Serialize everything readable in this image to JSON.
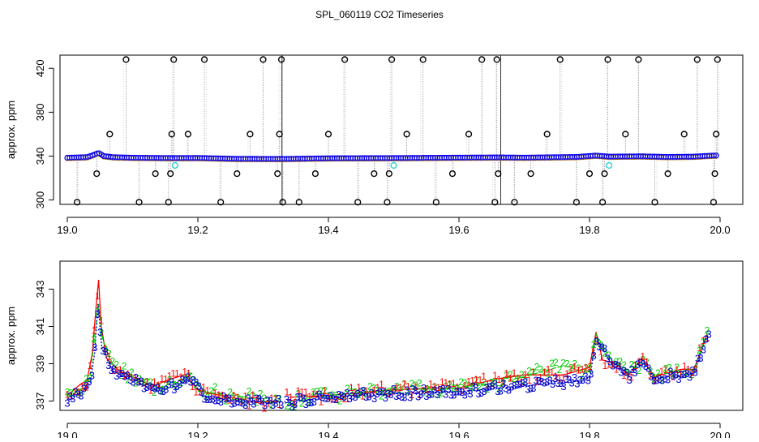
{
  "chart_data": [
    {
      "type": "scatter",
      "title": "SPL_060119  CO2 Timeseries",
      "xlabel": "",
      "ylabel": "approx. ppm",
      "xlim": [
        19.0,
        20.0
      ],
      "ylim": [
        296,
        432
      ],
      "xticks": [
        19.0,
        19.2,
        19.4,
        19.6,
        19.8,
        20.0
      ],
      "xtick_labels": [
        "19.0",
        "19.2",
        "19.4",
        "19.6",
        "19.8",
        "20.0"
      ],
      "yticks": [
        300,
        340,
        380,
        420
      ],
      "ytick_labels": [
        "300",
        "340",
        "380",
        "420"
      ],
      "vertical_breaks_x": [
        19.329,
        19.664
      ],
      "baseline": [
        [
          19.0,
          338.5
        ],
        [
          19.03,
          339.0
        ],
        [
          19.04,
          341.0
        ],
        [
          19.048,
          343.0
        ],
        [
          19.056,
          340.0
        ],
        [
          19.07,
          339.0
        ],
        [
          19.1,
          338.5
        ],
        [
          19.16,
          338.2
        ],
        [
          19.2,
          338.3
        ],
        [
          19.26,
          337.5
        ],
        [
          19.33,
          337.4
        ],
        [
          19.4,
          338.0
        ],
        [
          19.5,
          338.2
        ],
        [
          19.6,
          338.6
        ],
        [
          19.66,
          338.8
        ],
        [
          19.7,
          338.6
        ],
        [
          19.78,
          339.2
        ],
        [
          19.81,
          340.5
        ],
        [
          19.83,
          339.5
        ],
        [
          19.88,
          339.8
        ],
        [
          19.92,
          339.2
        ],
        [
          19.96,
          339.5
        ],
        [
          19.99,
          340.5
        ]
      ],
      "cyan_points": [
        [
          19.165,
          331.5
        ],
        [
          19.5,
          331.5
        ],
        [
          19.83,
          331.5
        ]
      ],
      "spikes": [
        [
          19.015,
          298
        ],
        [
          19.045,
          324
        ],
        [
          19.065,
          360
        ],
        [
          19.09,
          428
        ],
        [
          19.11,
          298
        ],
        [
          19.135,
          324
        ],
        [
          19.155,
          298
        ],
        [
          19.158,
          324
        ],
        [
          19.16,
          360
        ],
        [
          19.163,
          428
        ],
        [
          19.185,
          360
        ],
        [
          19.21,
          428
        ],
        [
          19.235,
          298
        ],
        [
          19.26,
          324
        ],
        [
          19.28,
          360
        ],
        [
          19.3,
          428
        ],
        [
          19.322,
          324
        ],
        [
          19.325,
          360
        ],
        [
          19.328,
          428
        ],
        [
          19.33,
          298
        ],
        [
          19.355,
          298
        ],
        [
          19.38,
          324
        ],
        [
          19.4,
          360
        ],
        [
          19.425,
          428
        ],
        [
          19.445,
          298
        ],
        [
          19.47,
          324
        ],
        [
          19.49,
          298
        ],
        [
          19.493,
          324
        ],
        [
          19.497,
          428
        ],
        [
          19.52,
          360
        ],
        [
          19.545,
          428
        ],
        [
          19.565,
          298
        ],
        [
          19.59,
          324
        ],
        [
          19.615,
          360
        ],
        [
          19.635,
          428
        ],
        [
          19.655,
          298
        ],
        [
          19.658,
          428
        ],
        [
          19.66,
          324
        ],
        [
          19.685,
          298
        ],
        [
          19.71,
          324
        ],
        [
          19.735,
          360
        ],
        [
          19.755,
          428
        ],
        [
          19.78,
          298
        ],
        [
          19.8,
          324
        ],
        [
          19.82,
          298
        ],
        [
          19.823,
          324
        ],
        [
          19.828,
          428
        ],
        [
          19.855,
          360
        ],
        [
          19.875,
          428
        ],
        [
          19.9,
          298
        ],
        [
          19.92,
          324
        ],
        [
          19.945,
          360
        ],
        [
          19.965,
          428
        ],
        [
          19.99,
          298
        ],
        [
          19.992,
          324
        ],
        [
          19.994,
          360
        ],
        [
          19.996,
          428
        ]
      ]
    },
    {
      "type": "line",
      "title": "",
      "xlabel": "",
      "ylabel": "approx. ppm",
      "xlim": [
        19.0,
        20.0
      ],
      "ylim": [
        336.5,
        344.5
      ],
      "xticks": [
        19.0,
        19.2,
        19.4,
        19.6,
        19.8,
        20.0
      ],
      "xtick_labels": [
        "19.0",
        "19.2",
        "19.4",
        "19.6",
        "19.8",
        "20.0"
      ],
      "yticks": [
        337,
        339,
        341,
        343
      ],
      "ytick_labels": [
        "337",
        "339",
        "341",
        "343"
      ],
      "series": [
        {
          "name": "1",
          "color": "#ff0000",
          "points": [
            [
              19.0,
              337.3
            ],
            [
              19.02,
              337.9
            ],
            [
              19.03,
              338.1
            ],
            [
              19.038,
              339.5
            ],
            [
              19.044,
              342.0
            ],
            [
              19.048,
              343.5
            ],
            [
              19.052,
              341.0
            ],
            [
              19.06,
              339.3
            ],
            [
              19.08,
              338.6
            ],
            [
              19.1,
              338.3
            ],
            [
              19.13,
              337.8
            ],
            [
              19.16,
              338.2
            ],
            [
              19.18,
              338.4
            ],
            [
              19.2,
              337.6
            ],
            [
              19.22,
              337.4
            ],
            [
              19.25,
              337.2
            ],
            [
              19.28,
              337.0
            ],
            [
              19.32,
              336.9
            ],
            [
              19.34,
              337.2
            ],
            [
              19.4,
              337.3
            ],
            [
              19.5,
              337.6
            ],
            [
              19.56,
              337.7
            ],
            [
              19.6,
              337.7
            ],
            [
              19.66,
              338.2
            ],
            [
              19.7,
              338.4
            ],
            [
              19.76,
              338.4
            ],
            [
              19.8,
              338.8
            ],
            [
              19.81,
              340.7
            ],
            [
              19.82,
              339.2
            ],
            [
              19.84,
              339.0
            ],
            [
              19.86,
              338.4
            ],
            [
              19.88,
              339.3
            ],
            [
              19.9,
              338.3
            ],
            [
              19.94,
              338.7
            ],
            [
              19.96,
              338.7
            ],
            [
              19.98,
              340.6
            ]
          ]
        },
        {
          "name": "2",
          "color": "#00cc00",
          "points": [
            [
              19.0,
              337.2
            ],
            [
              19.02,
              337.6
            ],
            [
              19.035,
              338.3
            ],
            [
              19.042,
              340.5
            ],
            [
              19.048,
              342.2
            ],
            [
              19.054,
              340.3
            ],
            [
              19.07,
              338.9
            ],
            [
              19.1,
              338.3
            ],
            [
              19.14,
              337.7
            ],
            [
              19.17,
              338.1
            ],
            [
              19.19,
              338.5
            ],
            [
              19.21,
              337.5
            ],
            [
              19.25,
              337.3
            ],
            [
              19.3,
              337.1
            ],
            [
              19.34,
              337.0
            ],
            [
              19.4,
              337.3
            ],
            [
              19.5,
              337.6
            ],
            [
              19.6,
              337.7
            ],
            [
              19.66,
              338.0
            ],
            [
              19.7,
              338.3
            ],
            [
              19.76,
              338.9
            ],
            [
              19.8,
              338.5
            ],
            [
              19.81,
              340.6
            ],
            [
              19.83,
              339.4
            ],
            [
              19.86,
              338.5
            ],
            [
              19.88,
              339.1
            ],
            [
              19.9,
              338.4
            ],
            [
              19.94,
              338.6
            ],
            [
              19.96,
              338.7
            ],
            [
              19.98,
              340.6
            ]
          ]
        },
        {
          "name": "3",
          "color": "#0000cc",
          "points": [
            [
              19.0,
              337.1
            ],
            [
              19.02,
              337.4
            ],
            [
              19.035,
              337.9
            ],
            [
              19.042,
              339.6
            ],
            [
              19.047,
              342.2
            ],
            [
              19.053,
              339.8
            ],
            [
              19.07,
              338.6
            ],
            [
              19.1,
              338.1
            ],
            [
              19.14,
              337.5
            ],
            [
              19.17,
              337.9
            ],
            [
              19.19,
              338.1
            ],
            [
              19.21,
              337.2
            ],
            [
              19.25,
              337.0
            ],
            [
              19.3,
              336.9
            ],
            [
              19.34,
              336.9
            ],
            [
              19.4,
              337.2
            ],
            [
              19.5,
              337.4
            ],
            [
              19.6,
              337.5
            ],
            [
              19.66,
              337.7
            ],
            [
              19.7,
              337.8
            ],
            [
              19.76,
              338.0
            ],
            [
              19.8,
              338.1
            ],
            [
              19.81,
              340.4
            ],
            [
              19.83,
              339.2
            ],
            [
              19.86,
              338.3
            ],
            [
              19.88,
              339.0
            ],
            [
              19.9,
              338.2
            ],
            [
              19.94,
              338.4
            ],
            [
              19.96,
              338.5
            ],
            [
              19.98,
              340.5
            ]
          ]
        }
      ]
    }
  ]
}
